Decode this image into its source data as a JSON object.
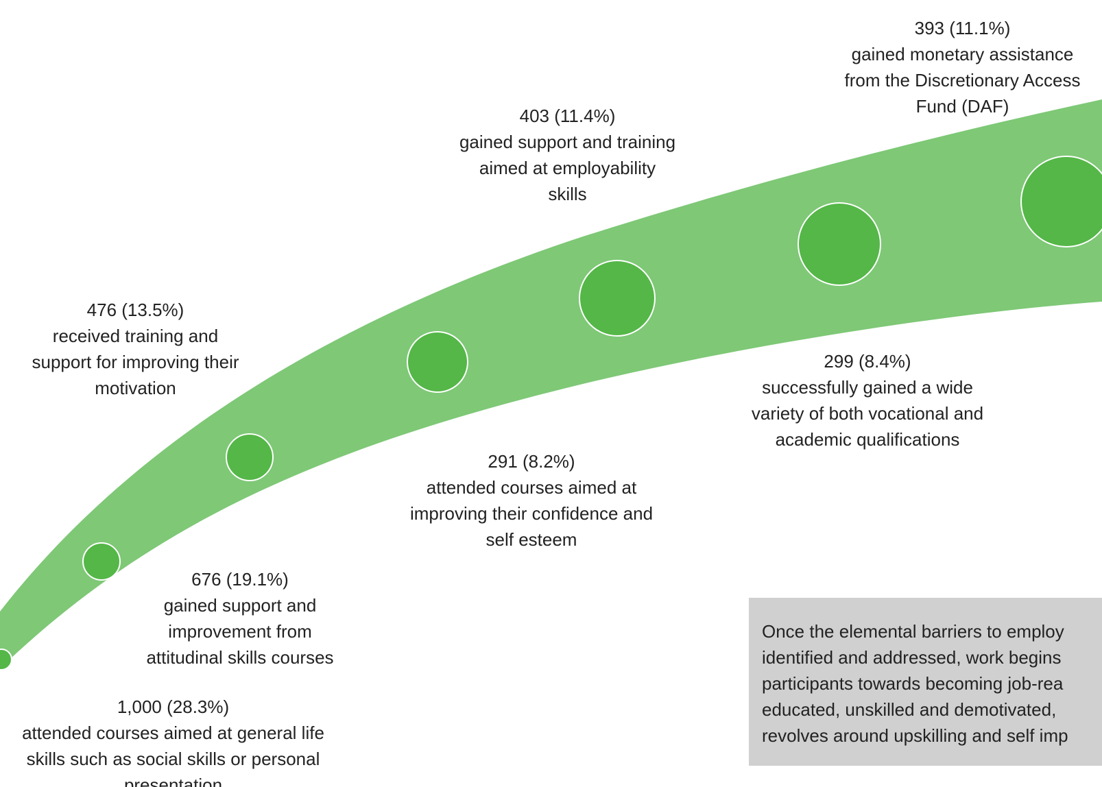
{
  "colors": {
    "band": "#7ec876",
    "marker": "#54b747",
    "marker_stroke": "#ffffff",
    "note_bg": "#d0d0d0",
    "text": "#222222"
  },
  "milestones": [
    {
      "value": "1,000 (28.3%)",
      "lines": [
        "attended courses aimed at general life",
        "skills such as social skills or personal",
        "presentation"
      ]
    },
    {
      "value": "676 (19.1%)",
      "lines": [
        "gained support and",
        "improvement from",
        "attitudinal skills courses"
      ]
    },
    {
      "value": "476 (13.5%)",
      "lines": [
        "received training and",
        "support for improving their",
        "motivation"
      ]
    },
    {
      "value": "291 (8.2%)",
      "lines": [
        "attended courses aimed at",
        "improving their confidence and",
        "self esteem"
      ]
    },
    {
      "value": "403 (11.4%)",
      "lines": [
        "gained support and training",
        "aimed at employability",
        "skills"
      ]
    },
    {
      "value": "299 (8.4%)",
      "lines": [
        "successfully gained a wide",
        "variety of both vocational and",
        "academic qualifications"
      ]
    },
    {
      "value": "393 (11.1%)",
      "lines": [
        "gained monetary assistance",
        "from the Discretionary Access",
        "Fund (DAF)"
      ]
    }
  ],
  "note": {
    "lines": [
      "Once the elemental barriers to employ",
      "identified and addressed, work begins",
      "participants towards becoming job-rea",
      "educated, unskilled and demotivated,",
      "revolves around upskilling and self imp"
    ]
  }
}
